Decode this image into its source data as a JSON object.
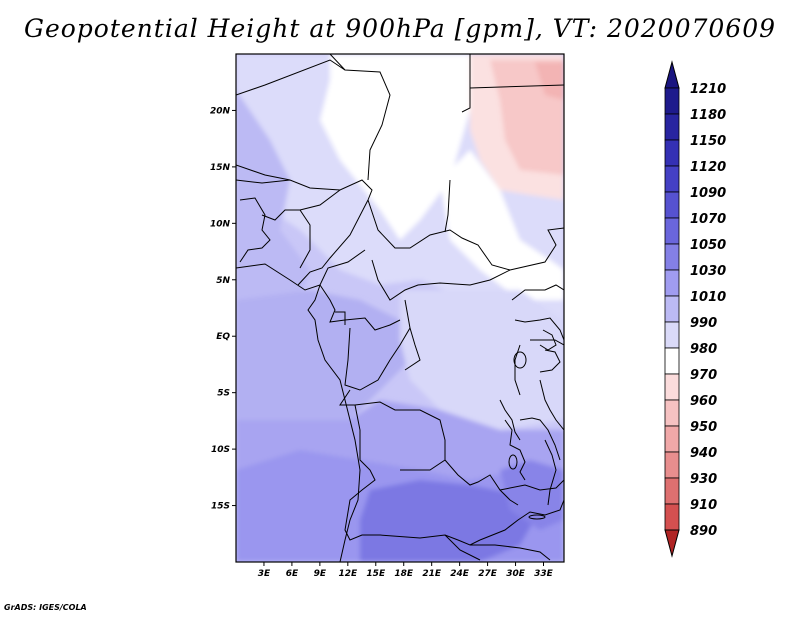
{
  "title": "Geopotential Height at 900hPa [gpm], VT: 2020070609",
  "credit": "GrADS: IGES/COLA",
  "map": {
    "lon_range": [
      0,
      35.2
    ],
    "lat_range": [
      -20,
      25
    ],
    "lat_ticks": [
      {
        "value": 20,
        "label": "20N"
      },
      {
        "value": 15,
        "label": "15N"
      },
      {
        "value": 10,
        "label": "10N"
      },
      {
        "value": 5,
        "label": "5N"
      },
      {
        "value": 0,
        "label": "EQ"
      },
      {
        "value": -5,
        "label": "5S"
      },
      {
        "value": -10,
        "label": "10S"
      },
      {
        "value": -15,
        "label": "15S"
      }
    ],
    "lon_ticks": [
      {
        "value": 3,
        "label": "3E"
      },
      {
        "value": 6,
        "label": "6E"
      },
      {
        "value": 9,
        "label": "9E"
      },
      {
        "value": 12,
        "label": "12E"
      },
      {
        "value": 15,
        "label": "15E"
      },
      {
        "value": 18,
        "label": "18E"
      },
      {
        "value": 21,
        "label": "21E"
      },
      {
        "value": 24,
        "label": "24E"
      },
      {
        "value": 27,
        "label": "27E"
      },
      {
        "value": 30,
        "label": "30E"
      },
      {
        "value": 33,
        "label": "33E"
      }
    ]
  },
  "colorbar": {
    "levels": [
      {
        "label": "1210",
        "color": "#1e1a8c"
      },
      {
        "label": "1180",
        "color": "#2824a0"
      },
      {
        "label": "1150",
        "color": "#3430b4"
      },
      {
        "label": "1120",
        "color": "#4440c4"
      },
      {
        "label": "1090",
        "color": "#5652d0"
      },
      {
        "label": "1070",
        "color": "#6a66dc"
      },
      {
        "label": "1050",
        "color": "#8480e6"
      },
      {
        "label": "1030",
        "color": "#a09cf0"
      },
      {
        "label": "1010",
        "color": "#bcbaf4"
      },
      {
        "label": "990",
        "color": "#dadaf8"
      },
      {
        "label": "980",
        "color": "#ffffff"
      },
      {
        "label": "970",
        "color": "#fbdcdc"
      },
      {
        "label": "960",
        "color": "#f6c2c2"
      },
      {
        "label": "950",
        "color": "#f0a8a8"
      },
      {
        "label": "940",
        "color": "#e88e8e"
      },
      {
        "label": "930",
        "color": "#de7070"
      },
      {
        "label": "910",
        "color": "#d45050"
      },
      {
        "label": "890",
        "color": "#c83434"
      }
    ],
    "top_color": "#1a1580",
    "bottom_color": "#b02424"
  }
}
